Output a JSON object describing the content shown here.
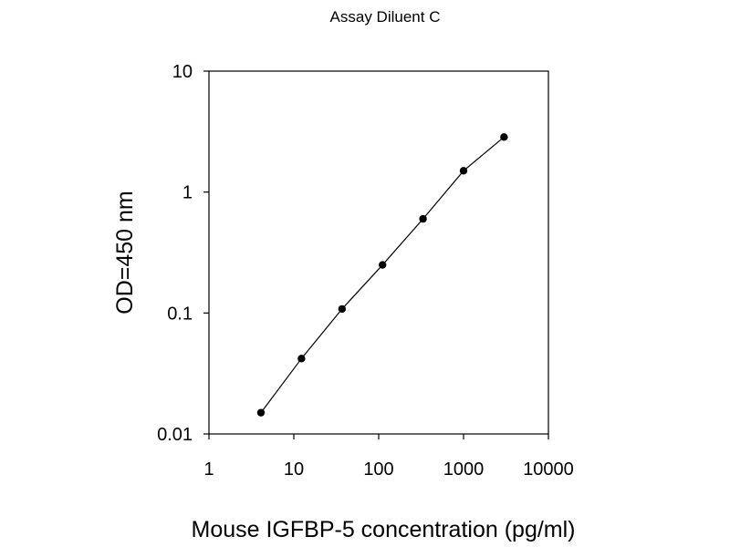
{
  "chart_data": {
    "type": "line",
    "title": "Assay Diluent C",
    "xlabel": "Mouse IGFBP-5 concentration (pg/ml)",
    "ylabel": "OD=450 nm",
    "x_scale": "log",
    "y_scale": "log",
    "xlim": [
      1,
      10000
    ],
    "ylim": [
      0.01,
      10
    ],
    "x_ticks": [
      "1",
      "10",
      "100",
      "1000",
      "10000"
    ],
    "y_ticks": [
      "0.01",
      "0.1",
      "1",
      "10"
    ],
    "grid": false,
    "legend": "none",
    "series": [
      {
        "x": [
          4.1,
          12.3,
          37,
          111,
          333,
          1000,
          3000
        ],
        "y": [
          0.015,
          0.042,
          0.108,
          0.25,
          0.6,
          1.5,
          2.85
        ],
        "color": "#000000",
        "marker": "circle"
      }
    ]
  }
}
